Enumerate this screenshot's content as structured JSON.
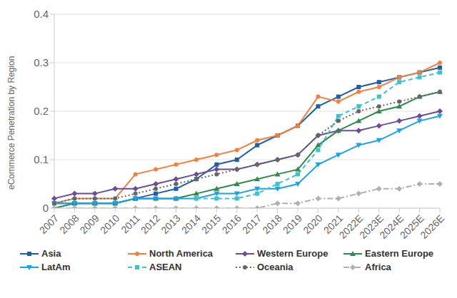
{
  "chart_data": {
    "type": "line",
    "y_label": "eCommerce Penetration by Region",
    "categories": [
      "2007",
      "2008",
      "2009",
      "2010",
      "2011",
      "2012",
      "2013",
      "2014",
      "2015",
      "2016",
      "2017",
      "2018",
      "2019",
      "2020",
      "2021",
      "2022E",
      "2023E",
      "2024E",
      "2025E",
      "2026E"
    ],
    "ylim": [
      0,
      0.4
    ],
    "yticks": [
      0,
      0.1,
      0.2,
      0.3,
      0.4
    ],
    "grid": true,
    "legend": "bottom",
    "series": [
      {
        "name": "Asia",
        "color": "#1f5faa",
        "marker": "square",
        "line_style": "solid",
        "values": [
          0.01,
          0.01,
          0.01,
          0.01,
          0.02,
          0.03,
          0.04,
          0.06,
          0.09,
          0.1,
          0.13,
          0.15,
          0.17,
          0.21,
          0.23,
          0.25,
          0.26,
          0.27,
          0.28,
          0.29
        ]
      },
      {
        "name": "North America",
        "color": "#f5803e",
        "marker": "circle",
        "line_style": "solid",
        "values": [
          0.01,
          0.02,
          0.02,
          0.02,
          0.07,
          0.08,
          0.09,
          0.1,
          0.11,
          0.12,
          0.14,
          0.15,
          0.17,
          0.23,
          0.22,
          0.24,
          0.25,
          0.27,
          0.28,
          0.3
        ]
      },
      {
        "name": "Western Europe",
        "color": "#6b4c9a",
        "marker": "diamond",
        "line_style": "solid",
        "values": [
          0.02,
          0.03,
          0.03,
          0.04,
          0.04,
          0.05,
          0.06,
          0.07,
          0.08,
          0.08,
          0.09,
          0.1,
          0.11,
          0.15,
          0.16,
          0.16,
          0.17,
          0.18,
          0.19,
          0.2
        ]
      },
      {
        "name": "Eastern Europe",
        "color": "#2e8b4a",
        "marker": "triangle",
        "line_style": "solid",
        "values": [
          0.0,
          0.01,
          0.01,
          0.01,
          0.02,
          0.02,
          0.02,
          0.03,
          0.04,
          0.05,
          0.06,
          0.07,
          0.08,
          0.13,
          0.16,
          0.18,
          0.2,
          0.21,
          0.23,
          0.24
        ]
      },
      {
        "name": "LatAm",
        "color": "#1aa3e8",
        "marker": "triangle-down",
        "line_style": "solid",
        "values": [
          0.01,
          0.01,
          0.01,
          0.01,
          0.02,
          0.02,
          0.02,
          0.02,
          0.03,
          0.03,
          0.04,
          0.04,
          0.05,
          0.09,
          0.11,
          0.13,
          0.14,
          0.16,
          0.18,
          0.19
        ]
      },
      {
        "name": "ASEAN",
        "color": "#3cc3d0",
        "marker": "square",
        "line_style": "dashed",
        "values": [
          null,
          null,
          null,
          null,
          null,
          null,
          null,
          0.02,
          0.02,
          0.02,
          0.03,
          0.05,
          0.07,
          0.12,
          0.19,
          0.21,
          0.23,
          0.26,
          0.27,
          0.28
        ]
      },
      {
        "name": "Oceania",
        "color": "#666666",
        "marker": "circle",
        "line_style": "dotted",
        "values": [
          0.01,
          0.02,
          0.02,
          0.02,
          0.03,
          0.04,
          0.05,
          0.06,
          0.07,
          0.08,
          0.09,
          0.1,
          0.11,
          0.15,
          0.18,
          0.2,
          0.21,
          0.22,
          0.23,
          0.24
        ]
      },
      {
        "name": "Africa",
        "color": "#b0b0b0",
        "marker": "diamond",
        "line_style": "dashdot",
        "values": [
          0,
          0,
          0,
          0,
          0,
          0,
          0,
          0,
          0,
          0,
          0,
          0.01,
          0.01,
          0.02,
          0.02,
          0.03,
          0.04,
          0.04,
          0.05,
          0.05
        ]
      }
    ]
  }
}
